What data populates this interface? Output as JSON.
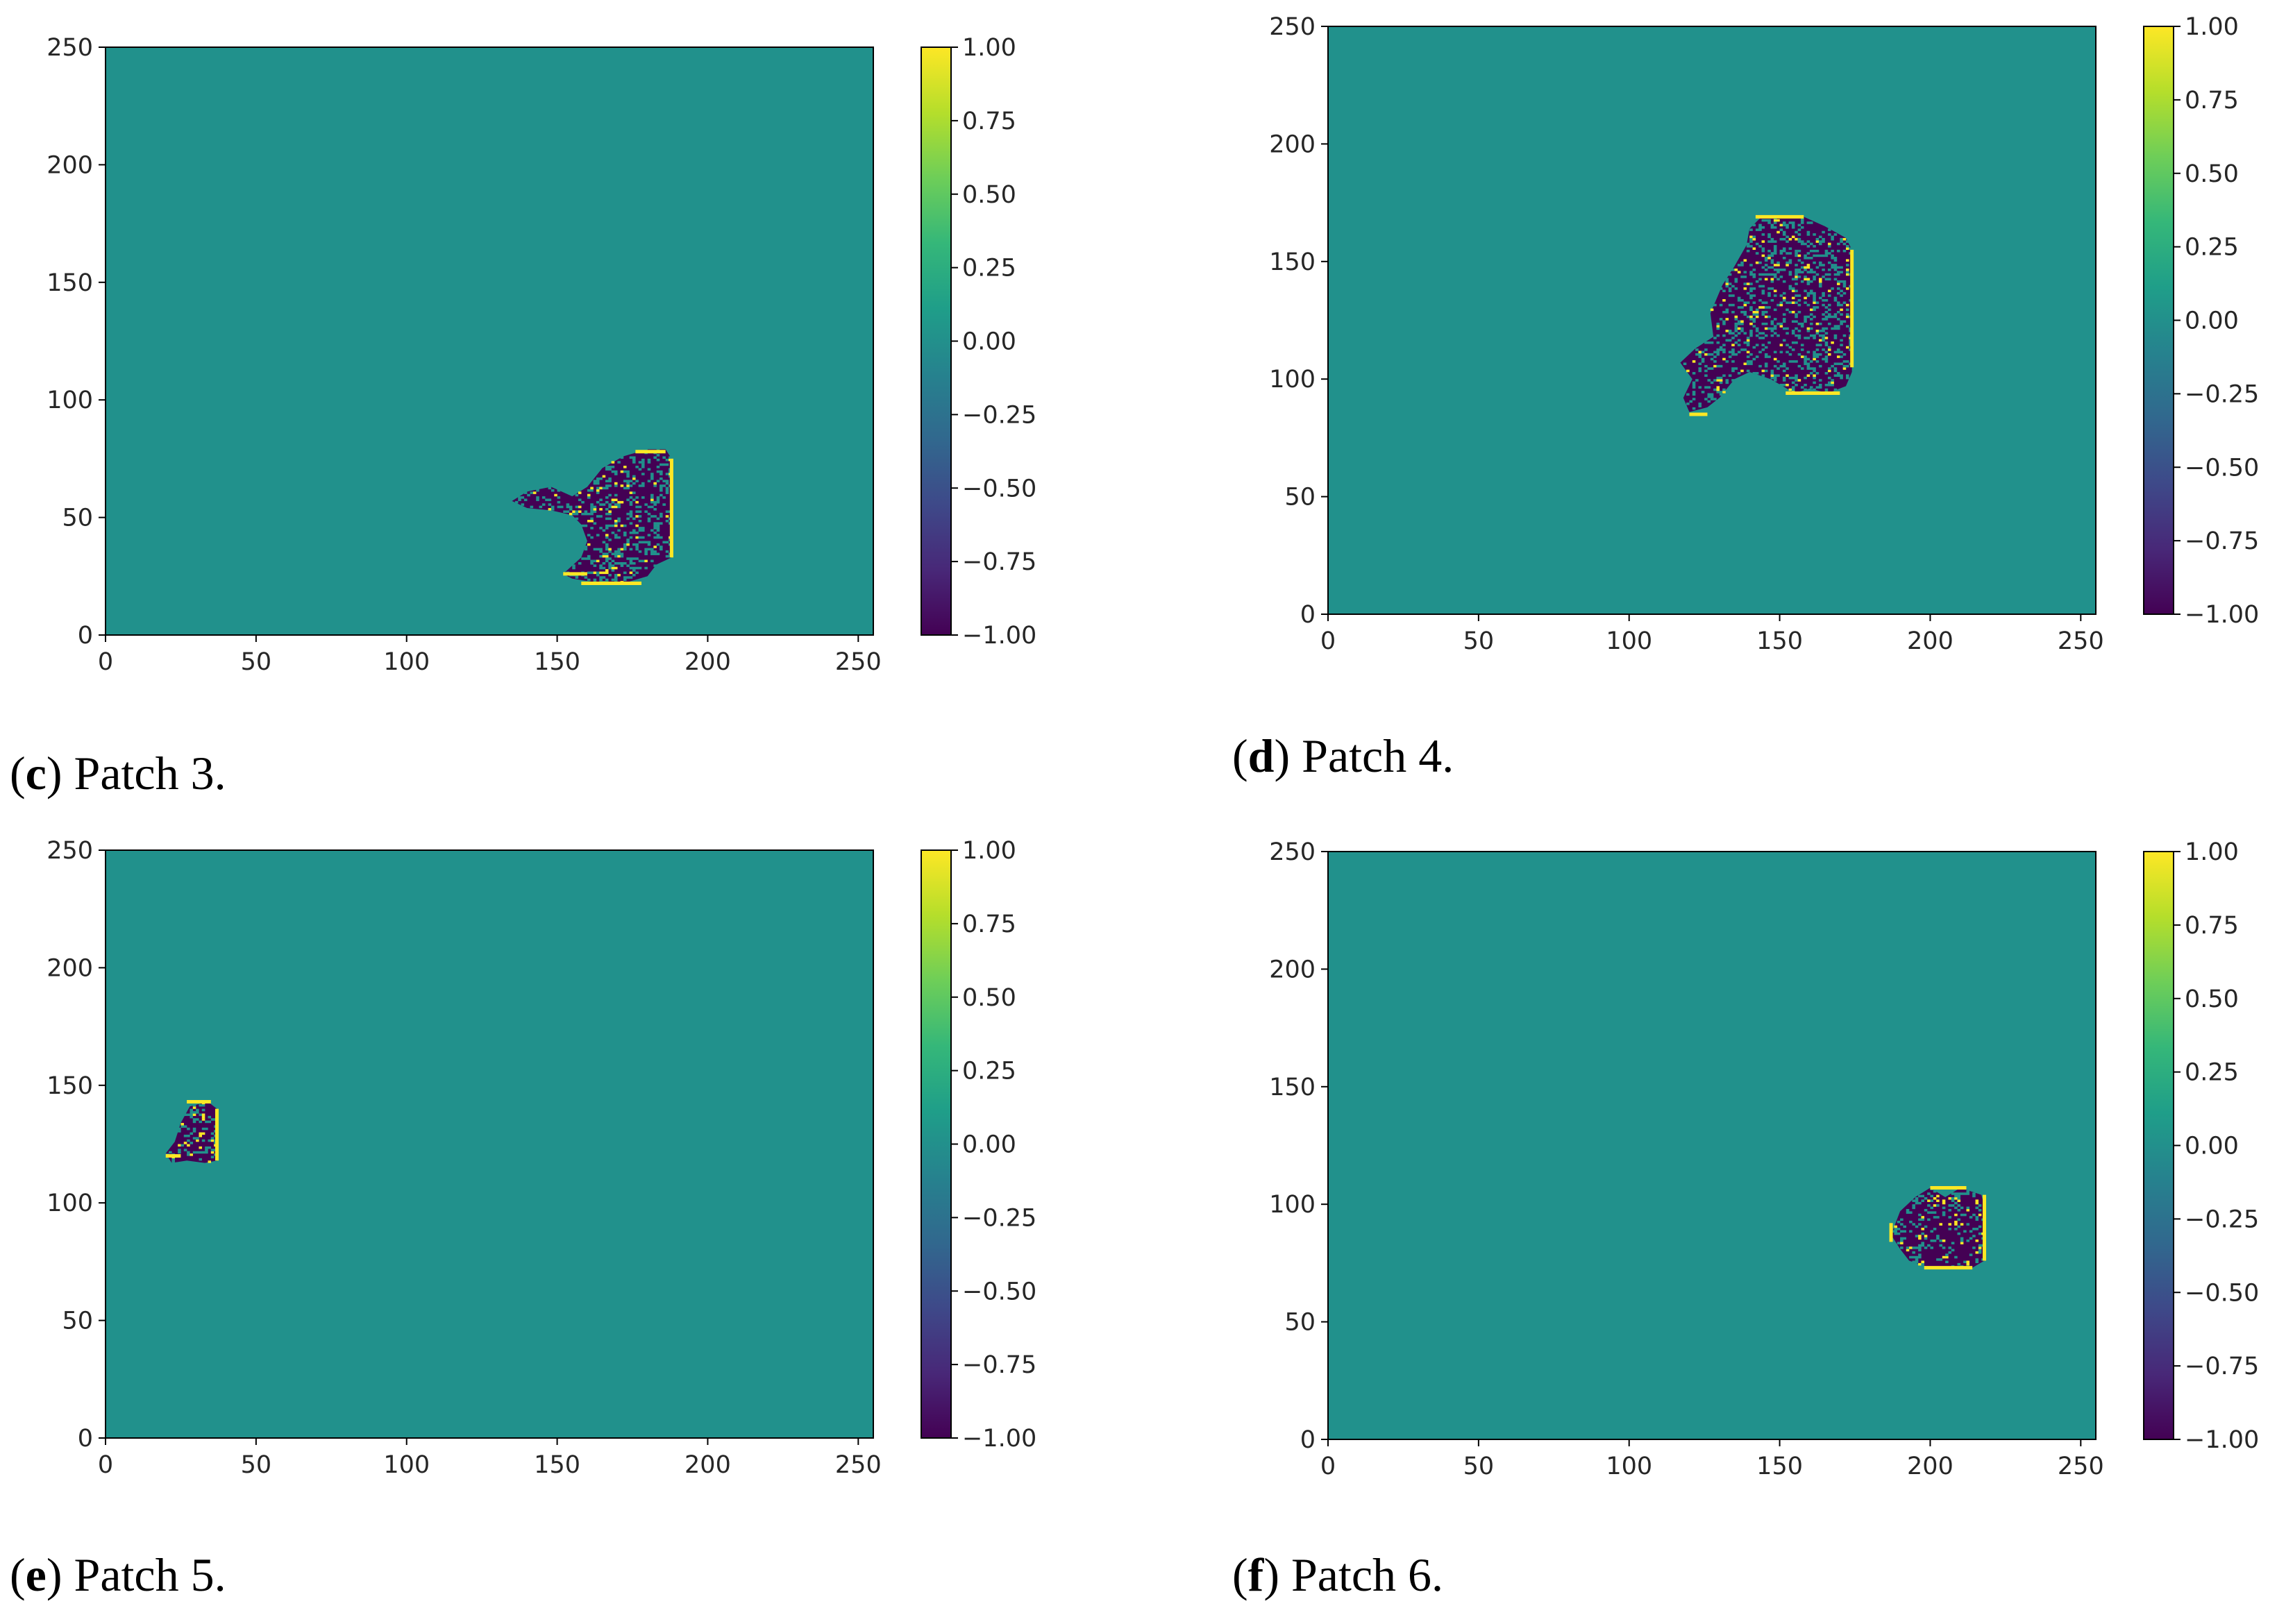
{
  "colors": {
    "background_value_color": "#21918c",
    "negative_color": "#440154",
    "positive_color": "#fde725",
    "colormap": "viridis"
  },
  "chart_data": [
    {
      "type": "heatmap",
      "caption_letter": "c",
      "caption_text": "Patch 3.",
      "x_ticks": [
        "0",
        "50",
        "100",
        "150",
        "200",
        "250"
      ],
      "y_ticks": [
        "0",
        "50",
        "100",
        "150",
        "200",
        "250"
      ],
      "colorbar_ticks": [
        "1.00",
        "0.75",
        "0.50",
        "0.25",
        "0.00",
        "−0.25",
        "−0.50",
        "−0.75",
        "−1.00"
      ],
      "xlim": [
        0,
        255
      ],
      "ylim": [
        0,
        250
      ],
      "color_range": [
        -1.0,
        1.0
      ],
      "background_value": 0.0,
      "patch_value": -1.0,
      "edge_value": 1.0,
      "patch_outline": [
        [
          135,
          57
        ],
        [
          140,
          61
        ],
        [
          148,
          63
        ],
        [
          155,
          59
        ],
        [
          160,
          63
        ],
        [
          165,
          71
        ],
        [
          172,
          76
        ],
        [
          180,
          79
        ],
        [
          186,
          79
        ],
        [
          188,
          75
        ],
        [
          188,
          33
        ],
        [
          183,
          30
        ],
        [
          180,
          25
        ],
        [
          172,
          22
        ],
        [
          165,
          22
        ],
        [
          155,
          24
        ],
        [
          152,
          26
        ],
        [
          158,
          33
        ],
        [
          160,
          40
        ],
        [
          158,
          47
        ],
        [
          155,
          51
        ],
        [
          148,
          53
        ],
        [
          140,
          54
        ]
      ],
      "edge_segments": [
        [
          [
            188,
            33
          ],
          [
            188,
            75
          ]
        ],
        [
          [
            176,
            78
          ],
          [
            186,
            78
          ]
        ],
        [
          [
            152,
            26
          ],
          [
            160,
            26
          ]
        ],
        [
          [
            158,
            22
          ],
          [
            178,
            22
          ]
        ]
      ]
    },
    {
      "type": "heatmap",
      "caption_letter": "d",
      "caption_text": "Patch 4.",
      "x_ticks": [
        "0",
        "50",
        "100",
        "150",
        "200",
        "250"
      ],
      "y_ticks": [
        "0",
        "50",
        "100",
        "150",
        "200",
        "250"
      ],
      "colorbar_ticks": [
        "1.00",
        "0.75",
        "0.50",
        "0.25",
        "0.00",
        "−0.25",
        "−0.50",
        "−0.75",
        "−1.00"
      ],
      "xlim": [
        0,
        255
      ],
      "ylim": [
        0,
        250
      ],
      "color_range": [
        -1.0,
        1.0
      ],
      "background_value": 0.0,
      "patch_value": -1.0,
      "edge_value": 1.0,
      "patch_outline": [
        [
          120,
          86
        ],
        [
          118,
          92
        ],
        [
          121,
          100
        ],
        [
          117,
          107
        ],
        [
          122,
          113
        ],
        [
          128,
          118
        ],
        [
          127,
          128
        ],
        [
          131,
          140
        ],
        [
          135,
          148
        ],
        [
          139,
          157
        ],
        [
          140,
          164
        ],
        [
          144,
          169
        ],
        [
          158,
          169
        ],
        [
          165,
          165
        ],
        [
          172,
          160
        ],
        [
          174,
          155
        ],
        [
          174,
          103
        ],
        [
          172,
          97
        ],
        [
          166,
          94
        ],
        [
          160,
          96
        ],
        [
          155,
          94
        ],
        [
          147,
          100
        ],
        [
          140,
          103
        ],
        [
          135,
          100
        ],
        [
          130,
          92
        ],
        [
          126,
          88
        ]
      ],
      "edge_segments": [
        [
          [
            174,
            105
          ],
          [
            174,
            155
          ]
        ],
        [
          [
            142,
            169
          ],
          [
            158,
            169
          ]
        ],
        [
          [
            120,
            85
          ],
          [
            126,
            85
          ]
        ],
        [
          [
            152,
            94
          ],
          [
            170,
            94
          ]
        ]
      ]
    },
    {
      "type": "heatmap",
      "caption_letter": "e",
      "caption_text": "Patch 5.",
      "x_ticks": [
        "0",
        "50",
        "100",
        "150",
        "200",
        "250"
      ],
      "y_ticks": [
        "0",
        "50",
        "100",
        "150",
        "200",
        "250"
      ],
      "colorbar_ticks": [
        "1.00",
        "0.75",
        "0.50",
        "0.25",
        "0.00",
        "−0.25",
        "−0.50",
        "−0.75",
        "−1.00"
      ],
      "xlim": [
        0,
        255
      ],
      "ylim": [
        0,
        250
      ],
      "color_range": [
        -1.0,
        1.0
      ],
      "background_value": 0.0,
      "patch_value": -1.0,
      "edge_value": 1.0,
      "patch_outline": [
        [
          20,
          121
        ],
        [
          23,
          126
        ],
        [
          25,
          134
        ],
        [
          28,
          141
        ],
        [
          34,
          143
        ],
        [
          37,
          140
        ],
        [
          37,
          118
        ],
        [
          33,
          117
        ],
        [
          27,
          118
        ],
        [
          22,
          117
        ]
      ],
      "edge_segments": [
        [
          [
            37,
            118
          ],
          [
            37,
            140
          ]
        ],
        [
          [
            27,
            143
          ],
          [
            35,
            143
          ]
        ],
        [
          [
            20,
            120
          ],
          [
            25,
            120
          ]
        ]
      ]
    },
    {
      "type": "heatmap",
      "caption_letter": "f",
      "caption_text": "Patch 6.",
      "x_ticks": [
        "0",
        "50",
        "100",
        "150",
        "200",
        "250"
      ],
      "y_ticks": [
        "0",
        "50",
        "100",
        "150",
        "200",
        "250"
      ],
      "colorbar_ticks": [
        "1.00",
        "0.75",
        "0.50",
        "0.25",
        "0.00",
        "−0.25",
        "−0.50",
        "−0.75",
        "−1.00"
      ],
      "xlim": [
        0,
        255
      ],
      "ylim": [
        0,
        250
      ],
      "color_range": [
        -1.0,
        1.0
      ],
      "background_value": 0.0,
      "patch_value": -1.0,
      "edge_value": 1.0,
      "patch_outline": [
        [
          187,
          87
        ],
        [
          190,
          97
        ],
        [
          195,
          103
        ],
        [
          200,
          107
        ],
        [
          205,
          103
        ],
        [
          210,
          107
        ],
        [
          217,
          104
        ],
        [
          218,
          99
        ],
        [
          218,
          76
        ],
        [
          214,
          73
        ],
        [
          200,
          73
        ],
        [
          193,
          76
        ],
        [
          190,
          81
        ]
      ],
      "edge_segments": [
        [
          [
            218,
            76
          ],
          [
            218,
            104
          ]
        ],
        [
          [
            187,
            84
          ],
          [
            187,
            92
          ]
        ],
        [
          [
            198,
            73
          ],
          [
            214,
            73
          ]
        ],
        [
          [
            200,
            107
          ],
          [
            212,
            107
          ]
        ]
      ]
    }
  ]
}
